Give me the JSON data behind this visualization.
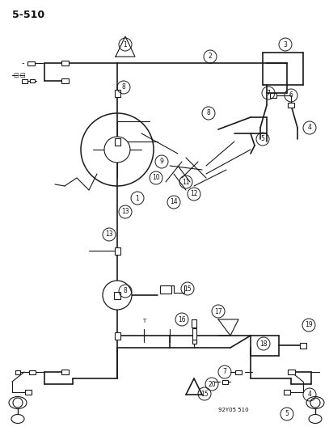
{
  "page_label": "5-510",
  "doc_code": "92Y05 510",
  "bg_color": "#ffffff",
  "line_color": "#1a1a1a",
  "text_color": "#111111",
  "figsize": [
    4.07,
    5.33
  ],
  "dpi": 100
}
